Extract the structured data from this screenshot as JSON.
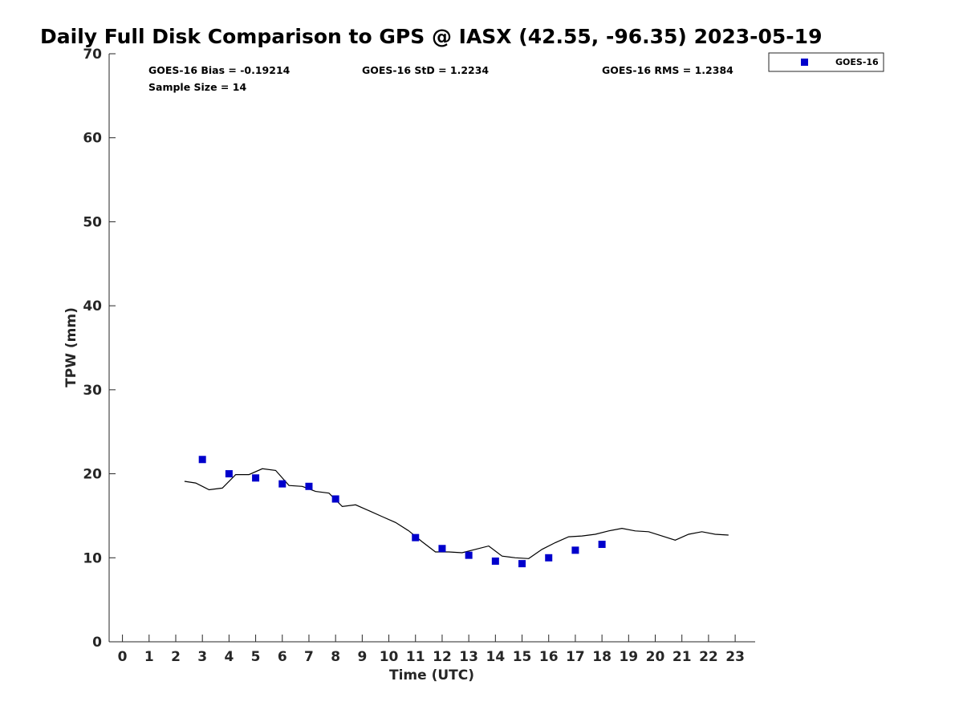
{
  "chart_data": {
    "type": "scatter",
    "title": "Daily Full Disk Comparison to GPS @ IASX (42.55, -96.35) 2023-05-19",
    "xlabel": "Time (UTC)",
    "ylabel": "TPW (mm)",
    "xlim": [
      -0.5,
      23.75
    ],
    "ylim": [
      0,
      70
    ],
    "x_ticks": [
      0,
      1,
      2,
      3,
      4,
      5,
      6,
      7,
      8,
      9,
      10,
      11,
      12,
      13,
      14,
      15,
      16,
      17,
      18,
      19,
      20,
      21,
      22,
      23
    ],
    "y_ticks": [
      0,
      10,
      20,
      30,
      40,
      50,
      60,
      70
    ],
    "grid": false,
    "legend_position": "top-right",
    "stats": {
      "bias": "GOES-16 Bias = -0.19214",
      "std": "GOES-16 StD = 1.2234",
      "rms": "GOES-16 RMS = 1.2384",
      "sample_size": "Sample Size = 14"
    },
    "series": [
      {
        "name": "GOES-16",
        "kind": "markers",
        "color": "#0000cc",
        "marker": "square",
        "x": [
          3,
          4,
          5,
          6,
          7,
          8,
          11,
          12,
          13,
          14,
          15,
          16,
          17,
          18
        ],
        "y": [
          21.7,
          20.0,
          19.5,
          18.8,
          18.5,
          17.0,
          12.4,
          11.1,
          10.3,
          9.6,
          9.3,
          10.0,
          10.9,
          11.6
        ]
      },
      {
        "kind": "line",
        "color": "#000000",
        "x": [
          2.33,
          2.75,
          3.25,
          3.75,
          4.25,
          4.75,
          5.25,
          5.75,
          6.25,
          6.75,
          7.25,
          7.75,
          8.25,
          8.75,
          9.25,
          9.75,
          10.25,
          10.75,
          11.25,
          11.75,
          12.25,
          12.75,
          13.25,
          13.75,
          14.25,
          14.75,
          15.25,
          15.75,
          16.25,
          16.75,
          17.25,
          17.75,
          18.25,
          18.75,
          19.25,
          19.75,
          20.25,
          20.75,
          21.25,
          21.75,
          22.25,
          22.75
        ],
        "y": [
          19.1,
          18.9,
          18.1,
          18.3,
          19.9,
          19.9,
          20.6,
          20.4,
          18.6,
          18.5,
          17.9,
          17.7,
          16.1,
          16.3,
          15.6,
          14.9,
          14.2,
          13.2,
          11.9,
          10.7,
          10.7,
          10.6,
          11.0,
          11.4,
          10.2,
          10.0,
          9.9,
          11.0,
          11.8,
          12.5,
          12.6,
          12.8,
          13.2,
          13.5,
          13.2,
          13.1,
          12.6,
          12.1,
          12.8,
          13.1,
          12.8,
          12.7
        ]
      }
    ]
  }
}
